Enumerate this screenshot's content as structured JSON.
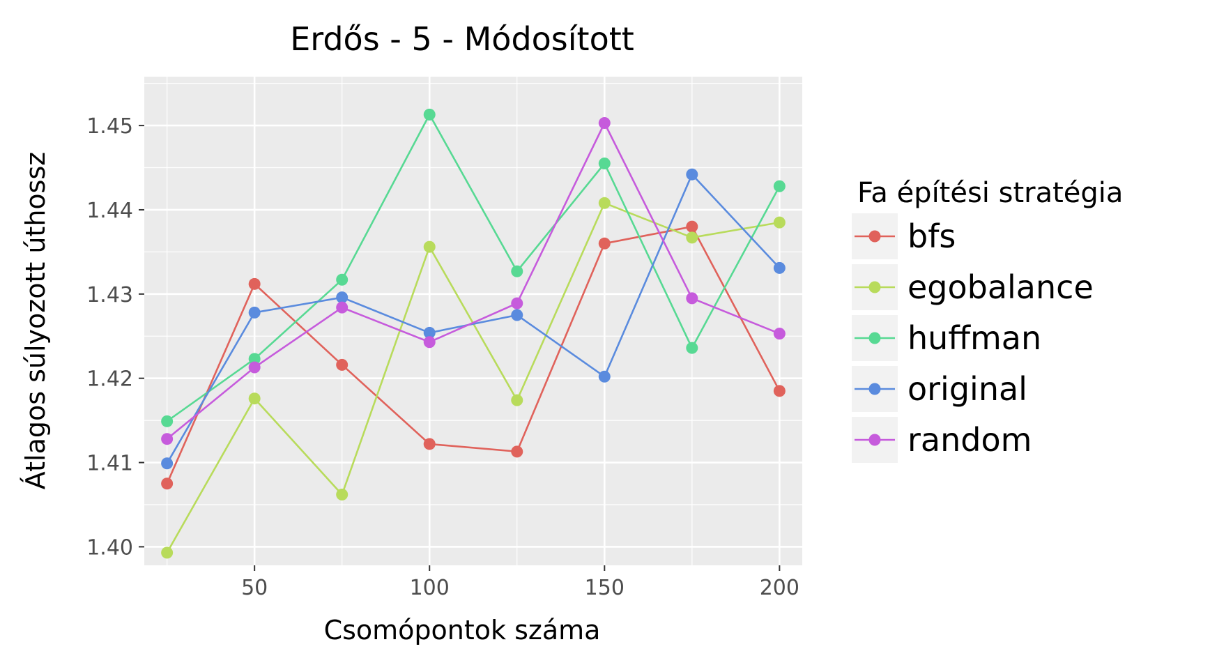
{
  "chart_data": {
    "type": "line",
    "title": "Erdős - 5 - Módosított",
    "xlabel": "Csomópontok száma",
    "ylabel": "Átlagos súlyozott úthossz",
    "x": [
      25,
      50,
      75,
      100,
      125,
      150,
      175,
      200
    ],
    "xlim": [
      18.5,
      206.5
    ],
    "ylim": [
      1.3978,
      1.4558
    ],
    "xticks": [
      50,
      100,
      150,
      200
    ],
    "xtick_labels": [
      "50",
      "100",
      "150",
      "200"
    ],
    "yticks": [
      1.4,
      1.41,
      1.42,
      1.43,
      1.44,
      1.45
    ],
    "ytick_labels": [
      "1.40",
      "1.41",
      "1.42",
      "1.43",
      "1.44",
      "1.45"
    ],
    "grid": true,
    "legend_title": "Fa építési stratégia",
    "legend_position": "right",
    "series": [
      {
        "name": "bfs",
        "color": "#E0625B",
        "values": [
          1.4075,
          1.4312,
          1.4216,
          1.4122,
          1.4113,
          1.436,
          1.438,
          1.4185
        ]
      },
      {
        "name": "egobalance",
        "color": "#B8DB5B",
        "values": [
          1.3993,
          1.4176,
          1.4062,
          1.4356,
          1.4174,
          1.4408,
          1.4367,
          1.4385
        ]
      },
      {
        "name": "huffman",
        "color": "#57D993",
        "values": [
          1.4149,
          1.4223,
          1.4317,
          1.4513,
          1.4327,
          1.4455,
          1.4236,
          1.4428
        ]
      },
      {
        "name": "original",
        "color": "#5A8BDE",
        "values": [
          1.4099,
          1.4278,
          1.4296,
          1.4254,
          1.4275,
          1.4202,
          1.4442,
          1.4331
        ]
      },
      {
        "name": "random",
        "color": "#C65BDC",
        "values": [
          1.4128,
          1.4213,
          1.4284,
          1.4243,
          1.4289,
          1.4503,
          1.4295,
          1.4253
        ]
      }
    ]
  }
}
